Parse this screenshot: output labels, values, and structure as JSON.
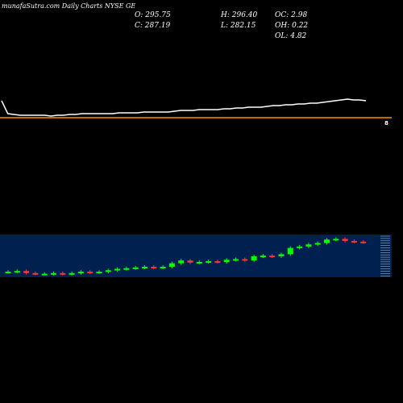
{
  "header": {
    "brand": "MunafaSutra",
    "title": "munafaSutra.com Daily Charts NYSE GE"
  },
  "ohlc": {
    "open": "O: 295.75",
    "close": "C: 287.19",
    "high": "H: 296.40",
    "low": "L: 282.15",
    "oc": "OC: 2.98",
    "oh": "OH: 0.22",
    "ol": "OL: 4.82"
  },
  "indicator": {
    "label": "8"
  },
  "colors": {
    "background": "#000000",
    "line": "#ffffff",
    "baseline": "#ff8c00",
    "panel": "#002050",
    "up": "#00ff00",
    "down": "#ff3333"
  },
  "chart_data": {
    "type": "candlestick",
    "line_series": [
      100,
      84,
      83,
      82,
      82,
      82,
      82,
      82,
      81,
      82,
      82,
      83,
      83,
      84,
      84,
      84,
      84,
      84,
      84,
      85,
      85,
      85,
      85,
      86,
      86,
      86,
      86,
      86,
      87,
      88,
      88,
      88,
      89,
      89,
      89,
      89,
      90,
      90,
      91,
      91,
      92,
      92,
      92,
      93,
      94,
      94,
      95,
      95,
      96,
      96,
      97,
      97,
      98,
      99,
      100,
      101,
      102,
      101,
      101,
      100
    ],
    "candles": [
      {
        "o": 100,
        "c": 100
      },
      {
        "o": 100,
        "c": 101
      },
      {
        "o": 101,
        "c": 98
      },
      {
        "o": 98,
        "c": 97
      },
      {
        "o": 97,
        "c": 97
      },
      {
        "o": 97,
        "c": 98
      },
      {
        "o": 98,
        "c": 97
      },
      {
        "o": 97,
        "c": 98
      },
      {
        "o": 98,
        "c": 100
      },
      {
        "o": 100,
        "c": 99
      },
      {
        "o": 99,
        "c": 100
      },
      {
        "o": 100,
        "c": 102
      },
      {
        "o": 102,
        "c": 104
      },
      {
        "o": 104,
        "c": 105
      },
      {
        "o": 105,
        "c": 106
      },
      {
        "o": 106,
        "c": 107
      },
      {
        "o": 107,
        "c": 106
      },
      {
        "o": 106,
        "c": 107
      },
      {
        "o": 107,
        "c": 112
      },
      {
        "o": 112,
        "c": 116
      },
      {
        "o": 116,
        "c": 113
      },
      {
        "o": 113,
        "c": 114
      },
      {
        "o": 114,
        "c": 115
      },
      {
        "o": 115,
        "c": 114
      },
      {
        "o": 114,
        "c": 117
      },
      {
        "o": 117,
        "c": 118
      },
      {
        "o": 118,
        "c": 116
      },
      {
        "o": 116,
        "c": 122
      },
      {
        "o": 122,
        "c": 123
      },
      {
        "o": 123,
        "c": 122
      },
      {
        "o": 122,
        "c": 125
      },
      {
        "o": 125,
        "c": 134
      },
      {
        "o": 134,
        "c": 136
      },
      {
        "o": 136,
        "c": 139
      },
      {
        "o": 139,
        "c": 141
      },
      {
        "o": 141,
        "c": 146
      },
      {
        "o": 146,
        "c": 147
      },
      {
        "o": 147,
        "c": 144
      },
      {
        "o": 144,
        "c": 143
      },
      {
        "o": 143,
        "c": 142
      }
    ]
  }
}
